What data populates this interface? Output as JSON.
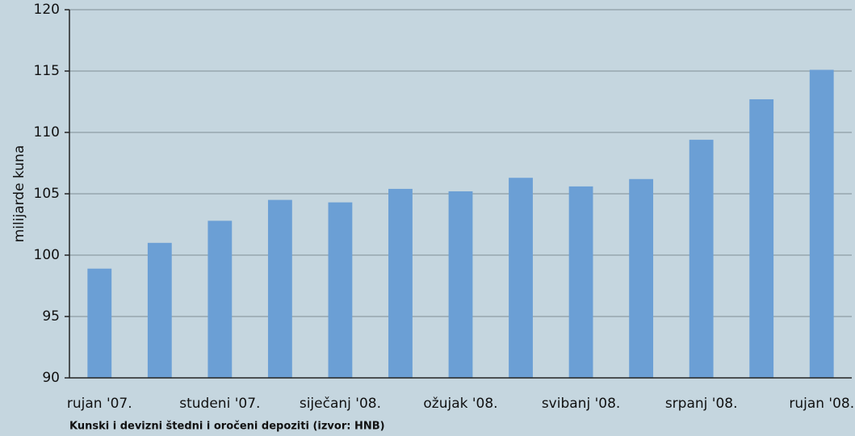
{
  "chart_data": {
    "type": "bar",
    "y_label": "milijarde kuna",
    "caption": "Kunski i devizni štedni i oročeni depoziti (izvor: HNB)",
    "categories": [
      "rujan '07.",
      null,
      "studeni '07.",
      null,
      "siječanj '08.",
      null,
      "ožujak '08.",
      null,
      "svibanj '08.",
      null,
      "srpanj '08.",
      null,
      "rujan '08."
    ],
    "values": [
      98.9,
      101.0,
      102.8,
      104.5,
      104.3,
      105.4,
      105.2,
      106.3,
      105.6,
      106.2,
      109.4,
      112.7,
      115.1
    ],
    "color": "#6b9fd5",
    "ylim": [
      90,
      120
    ],
    "yticks": [
      90,
      95,
      100,
      105,
      110,
      115,
      120
    ],
    "grid": true
  }
}
